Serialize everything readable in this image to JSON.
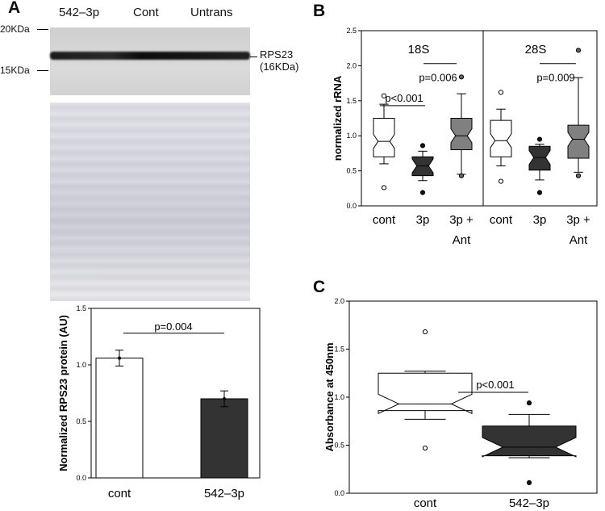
{
  "panel_a": {
    "letter": "A",
    "lanes": [
      "542–3p",
      "Cont",
      "Untrans"
    ],
    "marker_top": "20KDa",
    "marker_bottom": "15KDa",
    "band_label_1": "RPS23",
    "band_label_2": "(16KDa)"
  },
  "panel_b_letter": "B",
  "panel_c_letter": "C",
  "chart_data": [
    {
      "id": "a_bar",
      "type": "bar",
      "categories": [
        "cont",
        "542–3p"
      ],
      "values": [
        1.06,
        0.7
      ],
      "errors": [
        0.07,
        0.07
      ],
      "colors": [
        "#ffffff",
        "#333333"
      ],
      "ylabel": "Normalized RPS23 protein (AU)",
      "ylim": [
        0,
        1.5
      ],
      "yticks": [
        "0.0",
        "0.5",
        "1.0",
        "1.5"
      ],
      "annotation": "p=0.004"
    },
    {
      "id": "b_box",
      "type": "box",
      "ylabel": "normalized rRNA",
      "ylim": [
        0,
        2.5
      ],
      "yticks": [
        "0.0",
        "0.5",
        "1.0",
        "1.5",
        "2.0",
        "2.5"
      ],
      "groups": [
        {
          "title": "18S",
          "categories": [
            "cont",
            "3p",
            "3p +"
          ],
          "sublabels": [
            "",
            "",
            "Ant"
          ],
          "boxes": [
            {
              "q1": 0.7,
              "median": 0.92,
              "q3": 1.25,
              "wlo": 0.6,
              "whi": 1.45,
              "outliers": [
                1.57,
                0.26
              ],
              "color": "#ffffff"
            },
            {
              "q1": 0.43,
              "median": 0.57,
              "q3": 0.7,
              "wlo": 0.36,
              "whi": 0.78,
              "outliers": [
                0.86,
                0.19
              ],
              "color": "#333333"
            },
            {
              "q1": 0.8,
              "median": 1.0,
              "q3": 1.25,
              "wlo": 0.45,
              "whi": 1.6,
              "outliers": [
                1.84,
                0.43
              ],
              "color": "#808080"
            }
          ],
          "annotations": [
            "p<0.001",
            "p=0.006"
          ]
        },
        {
          "title": "28S",
          "categories": [
            "cont",
            "3p",
            "3p +"
          ],
          "sublabels": [
            "",
            "",
            "Ant"
          ],
          "boxes": [
            {
              "q1": 0.7,
              "median": 0.93,
              "q3": 1.22,
              "wlo": 0.57,
              "whi": 1.38,
              "outliers": [
                1.62,
                0.35
              ],
              "color": "#ffffff"
            },
            {
              "q1": 0.51,
              "median": 0.69,
              "q3": 0.85,
              "wlo": 0.37,
              "whi": 0.88,
              "outliers": [
                0.95,
                0.19
              ],
              "color": "#333333"
            },
            {
              "q1": 0.68,
              "median": 0.95,
              "q3": 1.15,
              "wlo": 0.48,
              "whi": 1.83,
              "outliers": [
                2.22,
                0.43
              ],
              "color": "#808080"
            }
          ],
          "annotations": [
            "p=0.009"
          ]
        }
      ]
    },
    {
      "id": "c_box",
      "type": "box",
      "categories": [
        "cont",
        "542–3p"
      ],
      "ylabel": "Absorbance at 450nm",
      "ylim": [
        0,
        2.0
      ],
      "yticks": [
        "0.0",
        "0.5",
        "1.0",
        "1.5",
        "2.0"
      ],
      "boxes": [
        {
          "q1": 0.86,
          "median": 0.93,
          "q3": 1.25,
          "wlo": 0.77,
          "whi": 1.27,
          "outliers": [
            1.68,
            0.47
          ],
          "color": "#ffffff"
        },
        {
          "q1": 0.39,
          "median": 0.48,
          "q3": 0.7,
          "wlo": 0.37,
          "whi": 0.82,
          "outliers": [
            0.94,
            0.11
          ],
          "color": "#333333"
        }
      ],
      "annotation": "p<0.001"
    }
  ]
}
